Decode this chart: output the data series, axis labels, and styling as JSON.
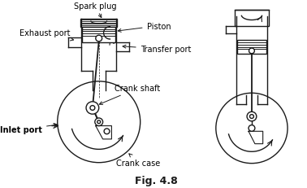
{
  "title": "Fig. 4.8",
  "bg_color": "#ffffff",
  "line_color": "#1a1a1a",
  "labels": {
    "spark_plug": "Spark plug",
    "piston": "Piston",
    "exhaust_port": "Exhaust port",
    "inlet_port": "Inlet port",
    "transfer_port": "Transfer port",
    "crank_shaft": "Crank shaft",
    "crank_case": "Crank case"
  },
  "fig_width": 3.78,
  "fig_height": 2.32,
  "dpi": 100
}
